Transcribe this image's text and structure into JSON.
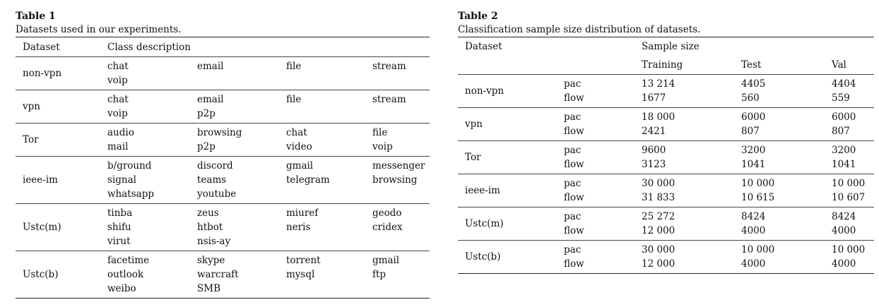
{
  "table1": {
    "label": "Table 1",
    "caption": "Datasets used in our experiments.",
    "headers": [
      "Dataset",
      "Class description"
    ],
    "rows": [
      {
        "dataset": "non-vpn",
        "classes": [
          [
            "chat",
            "voip"
          ],
          [
            "email",
            ""
          ],
          [
            "file",
            ""
          ],
          [
            "stream",
            ""
          ]
        ]
      },
      {
        "dataset": "vpn",
        "classes": [
          [
            "chat",
            "voip"
          ],
          [
            "email",
            "p2p"
          ],
          [
            "file",
            ""
          ],
          [
            "stream",
            ""
          ]
        ]
      },
      {
        "dataset": "Tor",
        "classes": [
          [
            "audio",
            "mail"
          ],
          [
            "browsing",
            "p2p"
          ],
          [
            "chat",
            "video"
          ],
          [
            "file",
            "voip"
          ]
        ]
      },
      {
        "dataset": "ieee-im",
        "classes": [
          [
            "b/ground",
            "signal",
            "whatsapp"
          ],
          [
            "discord",
            "teams",
            "youtube"
          ],
          [
            "gmail",
            "telegram",
            ""
          ],
          [
            "messenger",
            "browsing",
            ""
          ]
        ]
      },
      {
        "dataset": "Ustc(m)",
        "classes": [
          [
            "tinba",
            "shifu",
            "virut"
          ],
          [
            "zeus",
            "htbot",
            "nsis-ay"
          ],
          [
            "miuref",
            "neris",
            ""
          ],
          [
            "geodo",
            "cridex",
            ""
          ]
        ]
      },
      {
        "dataset": "Ustc(b)",
        "classes": [
          [
            "facetime",
            "outlook",
            "weibo"
          ],
          [
            "skype",
            "warcraft",
            "SMB"
          ],
          [
            "torrent",
            "mysql",
            ""
          ],
          [
            "gmail",
            "ftp",
            ""
          ]
        ]
      }
    ]
  },
  "table2": {
    "label": "Table 2",
    "caption": "Classification sample size distribution of datasets.",
    "headers": {
      "dataset": "Dataset",
      "sample_size": "Sample size",
      "training": "Training",
      "test": "Test",
      "val": "Val"
    },
    "rows": [
      {
        "dataset": "non-vpn",
        "types": [
          "pac",
          "flow"
        ],
        "training": [
          "13 214",
          "1677"
        ],
        "test": [
          "4405",
          "560"
        ],
        "val": [
          "4404",
          "559"
        ]
      },
      {
        "dataset": "vpn",
        "types": [
          "pac",
          "flow"
        ],
        "training": [
          "18 000",
          "2421"
        ],
        "test": [
          "6000",
          "807"
        ],
        "val": [
          "6000",
          "807"
        ]
      },
      {
        "dataset": "Tor",
        "types": [
          "pac",
          "flow"
        ],
        "training": [
          "9600",
          "3123"
        ],
        "test": [
          "3200",
          "1041"
        ],
        "val": [
          "3200",
          "1041"
        ]
      },
      {
        "dataset": "ieee-im",
        "types": [
          "pac",
          "flow"
        ],
        "training": [
          "30 000",
          "31 833"
        ],
        "test": [
          "10 000",
          "10 615"
        ],
        "val": [
          "10 000",
          "10 607"
        ]
      },
      {
        "dataset": "Ustc(m)",
        "types": [
          "pac",
          "flow"
        ],
        "training": [
          "25 272",
          "12 000"
        ],
        "test": [
          "8424",
          "4000"
        ],
        "val": [
          "8424",
          "4000"
        ]
      },
      {
        "dataset": "Ustc(b)",
        "types": [
          "pac",
          "flow"
        ],
        "training": [
          "30 000",
          "12 000"
        ],
        "test": [
          "10 000",
          "4000"
        ],
        "val": [
          "10 000",
          "4000"
        ]
      }
    ]
  }
}
